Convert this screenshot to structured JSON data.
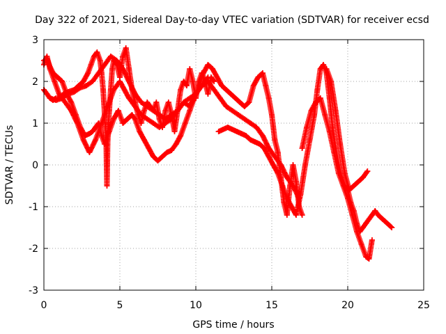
{
  "chart_data": {
    "type": "scatter",
    "title": "Day 322 of 2021, Sidereal Day-to-day VTEC variation (SDTVAR) for receiver ecsd",
    "xlabel": "GPS time / hours",
    "ylabel": "SDTVAR / TECUs",
    "xlim": [
      0,
      25
    ],
    "ylim": [
      -3,
      3
    ],
    "x_ticks": [
      "0",
      "5",
      "10",
      "15",
      "20",
      "25"
    ],
    "y_ticks": [
      "-3",
      "-2",
      "-1",
      "0",
      "1",
      "2",
      "3"
    ],
    "grid": true,
    "marker": "+",
    "series": [
      {
        "name": "ecsd-track-1",
        "color": "#ff0000",
        "x": [
          0,
          0.2,
          0.4,
          0.6,
          0.8,
          1.0,
          1.3,
          1.6,
          2.0,
          2.3,
          2.6,
          2.9,
          3.1,
          3.3,
          3.5,
          3.7,
          3.8,
          3.9,
          4.0,
          4.1,
          4.15,
          4.2,
          4.3,
          4.4,
          4.5,
          4.6,
          4.8,
          5.0,
          5.2,
          5.4,
          5.6,
          5.8,
          6.0,
          6.2,
          6.4,
          6.6,
          6.8,
          7.0,
          7.2,
          7.4,
          7.6,
          7.8,
          8.0,
          8.2,
          8.4,
          8.6,
          8.8,
          9.0,
          9.2,
          9.4,
          9.6,
          9.8,
          10.0,
          10.2,
          10.4,
          10.6,
          10.8,
          11.0,
          11.2
        ],
        "y": [
          1.8,
          1.7,
          1.6,
          1.55,
          1.6,
          1.6,
          1.7,
          1.75,
          1.8,
          1.9,
          2.0,
          2.2,
          2.4,
          2.6,
          2.7,
          2.5,
          2.2,
          1.8,
          1.2,
          0.5,
          -0.5,
          0.6,
          1.3,
          1.8,
          2.3,
          2.5,
          2.4,
          2.1,
          2.6,
          2.8,
          2.3,
          1.8,
          1.5,
          1.2,
          1.0,
          1.3,
          1.5,
          1.4,
          1.3,
          1.5,
          1.1,
          0.9,
          1.3,
          1.5,
          1.2,
          0.8,
          1.3,
          1.8,
          2.0,
          1.9,
          2.3,
          2.0,
          1.6,
          2.0,
          2.2,
          2.0,
          1.7,
          2.1,
          2.0
        ]
      },
      {
        "name": "ecsd-track-2",
        "color": "#ff0000",
        "x": [
          0,
          0.2,
          0.4,
          0.6,
          0.9,
          1.2,
          1.5,
          1.8,
          2.1,
          2.4,
          2.7,
          3.0,
          3.2,
          3.4,
          3.6,
          3.8,
          4.0,
          4.3,
          4.6,
          4.9,
          5.2,
          5.5,
          5.8,
          6.0,
          6.3,
          6.6,
          6.9,
          7.2,
          7.5,
          7.8,
          8.1,
          8.4,
          8.7,
          9.0,
          9.3,
          9.6,
          9.9,
          10.2,
          10.5,
          10.8,
          11.1,
          11.4,
          11.7,
          12.0,
          12.3,
          12.6,
          12.9,
          13.2,
          13.5,
          13.8,
          14.1,
          14.4,
          14.6,
          14.8,
          15.0,
          15.2,
          15.4,
          15.6,
          15.8,
          16.0,
          16.2,
          16.4,
          16.6,
          16.8,
          17.0
        ],
        "y": [
          2.5,
          2.55,
          2.35,
          2.2,
          2.1,
          2.0,
          1.7,
          1.5,
          1.2,
          0.9,
          0.7,
          0.75,
          0.8,
          0.9,
          1.0,
          0.7,
          0.5,
          0.8,
          1.1,
          1.3,
          1.0,
          1.1,
          1.2,
          1.1,
          0.8,
          0.6,
          0.4,
          0.2,
          0.1,
          0.2,
          0.3,
          0.35,
          0.5,
          0.7,
          1.0,
          1.3,
          1.6,
          1.9,
          2.2,
          2.4,
          2.3,
          2.1,
          1.9,
          1.8,
          1.7,
          1.6,
          1.5,
          1.4,
          1.5,
          1.9,
          2.1,
          2.2,
          1.9,
          1.6,
          1.2,
          0.6,
          0.3,
          -0.3,
          -0.9,
          -1.2,
          -0.5,
          0.0,
          -0.4,
          -1.0,
          -1.2
        ]
      },
      {
        "name": "ecsd-track-3",
        "color": "#ff0000",
        "x": [
          0,
          0.2,
          0.4,
          0.7,
          1.0,
          1.4,
          1.8,
          2.2,
          2.6,
          3.0,
          3.4,
          3.8,
          4.2,
          4.6,
          5.0,
          5.3,
          5.6,
          6.0,
          6.4,
          6.8,
          7.2,
          7.6,
          8.0,
          8.4,
          8.8,
          9.2,
          9.6,
          10.0,
          10.4,
          10.8
        ],
        "y": [
          2.4,
          2.6,
          2.3,
          2.0,
          1.7,
          1.5,
          1.3,
          1.0,
          0.6,
          0.3,
          0.6,
          1.0,
          1.4,
          1.8,
          2.0,
          1.8,
          1.6,
          1.4,
          1.2,
          1.1,
          1.0,
          0.9,
          1.0,
          1.1,
          1.3,
          1.5,
          1.4,
          1.7,
          1.9,
          2.1
        ]
      },
      {
        "name": "ecsd-track-4",
        "color": "#ff0000",
        "x": [
          0.4,
          0.8,
          1.2,
          1.6,
          2.0,
          2.4,
          2.8,
          3.2,
          3.6,
          4.0,
          4.4,
          4.8,
          5.2,
          5.6,
          6.0,
          6.4,
          6.8,
          7.2,
          7.6,
          8.0,
          8.4,
          8.8,
          9.2,
          9.6,
          10.0,
          10.4,
          10.8,
          11.2,
          11.6,
          12.0,
          12.4,
          12.8,
          13.2,
          13.6,
          14.0,
          14.4,
          14.8,
          15.2,
          15.6,
          16.0,
          16.4,
          16.8
        ],
        "y": [
          1.6,
          1.55,
          1.6,
          1.7,
          1.75,
          1.85,
          1.9,
          2.0,
          2.2,
          2.4,
          2.6,
          2.5,
          2.3,
          2.0,
          1.7,
          1.5,
          1.4,
          1.3,
          1.2,
          1.1,
          1.2,
          1.3,
          1.5,
          1.6,
          1.7,
          1.9,
          2.0,
          1.8,
          1.6,
          1.4,
          1.3,
          1.2,
          1.1,
          1.0,
          0.9,
          0.7,
          0.4,
          0.2,
          0.0,
          -0.3,
          -0.5,
          -0.8
        ]
      },
      {
        "name": "ecsd-track-5",
        "color": "#ff0000",
        "x": [
          11.5,
          11.8,
          12.1,
          12.4,
          12.7,
          13.0,
          13.3,
          13.6,
          13.9,
          14.2,
          14.5,
          14.8,
          15.1,
          15.4,
          15.7,
          16.0,
          16.3,
          16.6,
          16.9,
          17.2,
          17.5,
          17.8,
          18.0,
          18.2,
          18.4,
          18.6,
          18.8,
          19.0,
          19.2,
          19.4,
          19.6,
          19.8,
          20.0,
          20.2,
          20.4,
          20.6,
          20.8,
          21.0,
          21.2,
          21.4,
          21.6,
          21.8,
          22.0,
          22.3,
          22.6,
          22.9
        ],
        "y": [
          0.8,
          0.85,
          0.9,
          0.85,
          0.8,
          0.75,
          0.7,
          0.6,
          0.55,
          0.5,
          0.4,
          0.2,
          0.0,
          -0.2,
          -0.5,
          -0.8,
          -1.0,
          -1.2,
          -0.7,
          0.0,
          0.6,
          1.2,
          1.8,
          2.3,
          2.4,
          2.2,
          1.6,
          0.9,
          0.4,
          0.0,
          -0.3,
          -0.5,
          -0.6,
          -0.9,
          -1.1,
          -1.4,
          -1.6,
          -1.5,
          -1.4,
          -1.3,
          -1.2,
          -1.1,
          -1.2,
          -1.3,
          -1.4,
          -1.5
        ]
      },
      {
        "name": "ecsd-track-6",
        "color": "#ff0000",
        "x": [
          17.0,
          17.3,
          17.6,
          17.9,
          18.2,
          18.5,
          18.8,
          19.1,
          19.4,
          19.7,
          20.0,
          20.3,
          20.6,
          20.9,
          21.2,
          21.4,
          21.6
        ],
        "y": [
          0.4,
          0.9,
          1.3,
          1.5,
          1.6,
          1.2,
          0.8,
          0.3,
          -0.2,
          -0.5,
          -0.8,
          -1.2,
          -1.6,
          -1.9,
          -2.2,
          -2.25,
          -1.8
        ]
      },
      {
        "name": "ecsd-track-7",
        "color": "#ff0000",
        "x": [
          18.6,
          18.9,
          19.2,
          19.5,
          19.8,
          20.1,
          20.4,
          20.7,
          21.0,
          21.3
        ],
        "y": [
          2.3,
          2.0,
          1.3,
          0.5,
          -0.2,
          -0.6,
          -0.5,
          -0.4,
          -0.3,
          -0.15
        ]
      }
    ]
  }
}
